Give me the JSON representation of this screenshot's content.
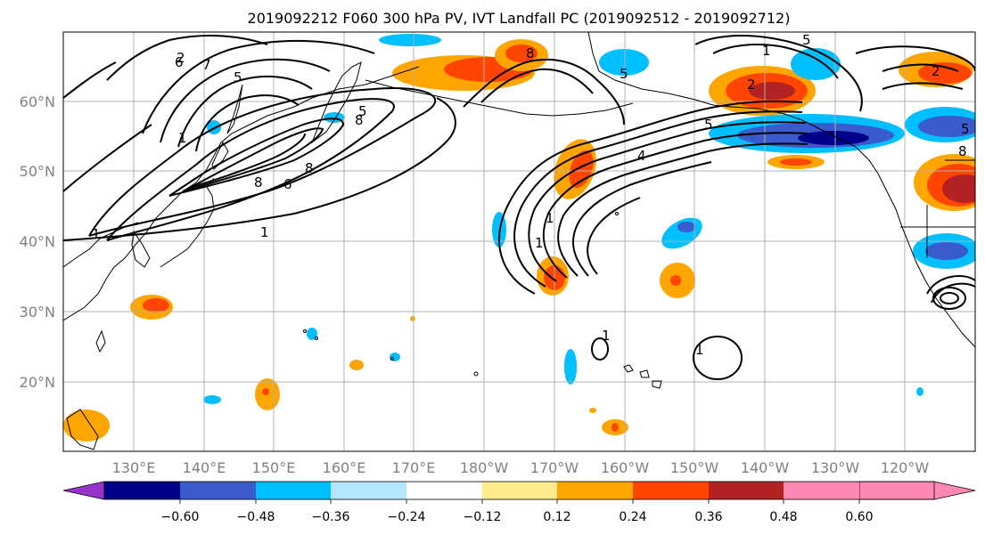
{
  "title": "2019092212 F060 300 hPa PV, IVT Landfall PC (2019092512 - 2019092712)",
  "lon_labels": [
    "130°E",
    "140°E",
    "150°E",
    "160°E",
    "170°E",
    "180°W",
    "170°W",
    "160°W",
    "150°W",
    "140°W",
    "130°W",
    "120°W"
  ],
  "lat_labels": [
    "60°N",
    "50°N",
    "40°N",
    "30°N",
    "20°N"
  ],
  "colorbar": {
    "ticks": [
      "−0.60",
      "−0.48",
      "−0.36",
      "−0.24",
      "−0.12",
      "0.12",
      "0.24",
      "0.36",
      "0.48",
      "0.60"
    ],
    "under_color": "#9932cc",
    "over_color": "#ff87b3",
    "colors": [
      "#9932cc",
      "#00008b",
      "#3a5bcc",
      "#00bfff",
      "#b3e5ff",
      "#ffffff",
      "#ffeb8a",
      "#ffa500",
      "#ff4500",
      "#b22222",
      "#ff87b3"
    ]
  },
  "contour_labels": [
    "2",
    "6",
    "7",
    "5",
    "8",
    "6",
    "8",
    "8",
    "5",
    "1",
    "1",
    "1",
    "1",
    "1",
    "5",
    "5",
    "2",
    "2",
    "8",
    "4",
    "1",
    "1",
    "1",
    "5",
    "5",
    "8"
  ],
  "palette": {
    "land": "#000000",
    "grid": "#b0b0b0",
    "tick_text": "#808080"
  }
}
